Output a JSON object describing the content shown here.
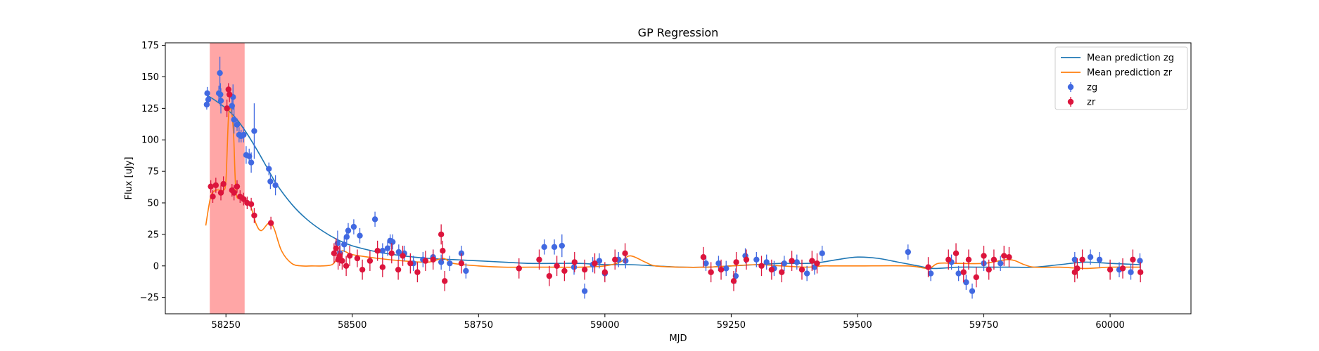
{
  "chart_data": {
    "type": "scatter",
    "title": "GP Regression",
    "xlabel": "MJD",
    "ylabel": "Flux [uJy]",
    "xlim": [
      58130,
      60160
    ],
    "ylim": [
      -38,
      177
    ],
    "xticks": [
      58250,
      58500,
      58750,
      59000,
      59250,
      59500,
      59750,
      60000
    ],
    "yticks": [
      -25,
      0,
      25,
      50,
      75,
      100,
      125,
      150,
      175
    ],
    "xtick_labels": [
      "58250",
      "58500",
      "58750",
      "59000",
      "59250",
      "59500",
      "59750",
      "60000"
    ],
    "ytick_labels": [
      "−25",
      "0",
      "25",
      "50",
      "75",
      "100",
      "125",
      "150",
      "175"
    ],
    "shaded_region": {
      "x0": 58218,
      "x1": 58287,
      "color": "#ff6b6b"
    },
    "legend_position": "upper-right",
    "legend": {
      "line_zg": "Mean prediction zg",
      "line_zr": "Mean prediction zr",
      "points_zg": "zg",
      "points_zr": "zr"
    },
    "colors": {
      "line_zg": "#1f77b4",
      "line_zr": "#ff7f0e",
      "points_zg": "#4169e1",
      "points_zr": "#dc143c"
    },
    "lines": [
      {
        "name": "Mean prediction zg",
        "x": [
          58210,
          58230,
          58250,
          58270,
          58290,
          58310,
          58330,
          58350,
          58380,
          58410,
          58440,
          58470,
          58500,
          58550,
          58600,
          58650,
          58700,
          58750,
          58800,
          58850,
          58900,
          58950,
          59000,
          59050,
          59100,
          59150,
          59200,
          59250,
          59300,
          59350,
          59400,
          59430,
          59460,
          59500,
          59540,
          59580,
          59620,
          59650,
          59700,
          59750,
          59800,
          59850,
          59900,
          59950,
          60000,
          60060
        ],
        "y": [
          136,
          131,
          125,
          117,
          106,
          93,
          79,
          65,
          49,
          37,
          28,
          21,
          16,
          11,
          8,
          6,
          5,
          4,
          3,
          2,
          2,
          2,
          1,
          1,
          0,
          -1,
          -1,
          0,
          1,
          2,
          2,
          3,
          5,
          7,
          6,
          3,
          0,
          -2,
          -1,
          -1,
          -1,
          -1,
          1,
          3,
          2,
          1
        ]
      },
      {
        "name": "Mean prediction zr",
        "x": [
          58210,
          58220,
          58230,
          58240,
          58245,
          58250,
          58255,
          58260,
          58265,
          58270,
          58280,
          58290,
          58300,
          58310,
          58320,
          58335,
          58345,
          58360,
          58380,
          58400,
          58420,
          58440,
          58460,
          58470,
          58480,
          58500,
          58550,
          58600,
          58650,
          58680,
          58700,
          58750,
          58800,
          58850,
          58900,
          58950,
          59000,
          59030,
          59050,
          59080,
          59100,
          59150,
          59200,
          59250,
          59300,
          59350,
          59400,
          59430,
          59450,
          59500,
          59600,
          59640,
          59660,
          59700,
          59750,
          59800,
          59830,
          59850,
          59900,
          59950,
          60000,
          60060
        ],
        "y": [
          32,
          55,
          60,
          60,
          60,
          68,
          118,
          124,
          105,
          58,
          55,
          52,
          46,
          33,
          28,
          34,
          30,
          12,
          2,
          0,
          0,
          0,
          1,
          6,
          12,
          9,
          6,
          4,
          3,
          6,
          2,
          0,
          -1,
          -1,
          -1,
          -1,
          0,
          3,
          8,
          3,
          0,
          -1,
          -1,
          0,
          1,
          0,
          -1,
          0,
          0,
          0,
          0,
          -2,
          2,
          2,
          2,
          5,
          1,
          -1,
          -1,
          -2,
          -1,
          -1
        ]
      }
    ],
    "series": [
      {
        "name": "zg",
        "x": [
          58212,
          58213,
          58215,
          58236,
          58238,
          58239,
          58240,
          58262,
          58264,
          58266,
          58272,
          58276,
          58280,
          58285,
          58290,
          58296,
          58300,
          58306,
          58335,
          58338,
          58348,
          58471,
          58476,
          58484,
          58489,
          58492,
          58503,
          58515,
          58545,
          58560,
          58570,
          58575,
          58580,
          58592,
          58603,
          58621,
          58640,
          58660,
          58676,
          58693,
          58716,
          58725,
          58880,
          58900,
          58915,
          58939,
          58960,
          58976,
          58989,
          59000,
          59027,
          59041,
          59200,
          59225,
          59240,
          59259,
          59278,
          59300,
          59320,
          59335,
          59355,
          59380,
          59400,
          59415,
          59430,
          59600,
          59645,
          59686,
          59700,
          59715,
          59727,
          59750,
          59783,
          59930,
          59961,
          59979,
          60018,
          60041,
          60059
        ],
        "y": [
          128,
          137,
          132,
          137,
          153,
          136,
          131,
          127,
          134,
          116,
          112,
          104,
          103,
          104,
          88,
          87,
          82,
          107,
          77,
          67,
          64,
          18,
          10,
          17,
          23,
          28,
          31,
          24,
          37,
          12,
          14,
          20,
          19,
          11,
          10,
          2,
          5,
          7,
          3,
          2,
          10,
          -4,
          15,
          15,
          16,
          -1,
          -20,
          1,
          4,
          -6,
          5,
          4,
          2,
          2,
          -2,
          -8,
          8,
          5,
          3,
          -2,
          2,
          3,
          -6,
          -1,
          10,
          11,
          -6,
          3,
          -6,
          -13,
          -20,
          2,
          2,
          5,
          7,
          5,
          -3,
          -5,
          4
        ],
        "err": [
          4,
          5,
          4,
          6,
          13,
          9,
          10,
          7,
          10,
          11,
          5,
          6,
          5,
          6,
          7,
          6,
          8,
          22,
          5,
          6,
          8,
          10,
          8,
          6,
          6,
          6,
          6,
          6,
          6,
          6,
          6,
          5,
          6,
          6,
          6,
          6,
          6,
          6,
          6,
          6,
          6,
          6,
          6,
          6,
          9,
          6,
          6,
          6,
          6,
          6,
          6,
          6,
          6,
          6,
          6,
          6,
          6,
          6,
          6,
          6,
          6,
          6,
          6,
          6,
          6,
          6,
          6,
          6,
          6,
          6,
          6,
          6,
          6,
          6,
          6,
          6,
          6,
          6,
          6
        ]
      },
      {
        "name": "zr",
        "x": [
          58220,
          58224,
          58230,
          58240,
          58245,
          58252,
          58255,
          58257,
          58262,
          58266,
          58272,
          58278,
          58285,
          58292,
          58300,
          58306,
          58339,
          58464,
          58468,
          58472,
          58475,
          58480,
          58488,
          58495,
          58510,
          58520,
          58535,
          58550,
          58560,
          58578,
          58591,
          58600,
          58615,
          58629,
          58645,
          58660,
          58676,
          58679,
          58683,
          58716,
          58830,
          58870,
          58890,
          58905,
          58920,
          58940,
          58960,
          58980,
          59000,
          59020,
          59040,
          59195,
          59210,
          59230,
          59255,
          59260,
          59280,
          59310,
          59330,
          59350,
          59370,
          59390,
          59410,
          59420,
          59640,
          59680,
          59695,
          59710,
          59720,
          59735,
          59750,
          59760,
          59770,
          59790,
          59800,
          59930,
          59935,
          59945,
          60000,
          60025,
          60045,
          60060
        ],
        "y": [
          63,
          55,
          64,
          58,
          65,
          125,
          140,
          136,
          60,
          58,
          63,
          55,
          53,
          50,
          49,
          40,
          34,
          10,
          14,
          5,
          8,
          4,
          0,
          8,
          6,
          -3,
          4,
          12,
          -1,
          10,
          -3,
          8,
          2,
          -5,
          4,
          5,
          25,
          12,
          -12,
          2,
          -2,
          5,
          -8,
          0,
          -4,
          3,
          -3,
          2,
          -5,
          5,
          10,
          7,
          -5,
          -3,
          -12,
          3,
          5,
          0,
          -3,
          -5,
          4,
          -3,
          4,
          2,
          -1,
          5,
          10,
          -5,
          5,
          -9,
          8,
          -3,
          5,
          8,
          7,
          -5,
          -2,
          5,
          -3,
          -2,
          5,
          -5
        ],
        "err": [
          5,
          5,
          6,
          6,
          6,
          7,
          5,
          6,
          5,
          6,
          5,
          5,
          5,
          5,
          5,
          6,
          5,
          8,
          8,
          8,
          8,
          7,
          8,
          8,
          7,
          8,
          8,
          8,
          8,
          8,
          8,
          8,
          8,
          8,
          8,
          8,
          8,
          8,
          8,
          8,
          8,
          8,
          8,
          8,
          8,
          8,
          8,
          8,
          8,
          8,
          8,
          8,
          8,
          8,
          8,
          8,
          8,
          8,
          8,
          8,
          8,
          8,
          8,
          8,
          8,
          8,
          8,
          8,
          8,
          8,
          8,
          8,
          8,
          8,
          8,
          8,
          8,
          8,
          8,
          8,
          8,
          8
        ]
      }
    ]
  }
}
